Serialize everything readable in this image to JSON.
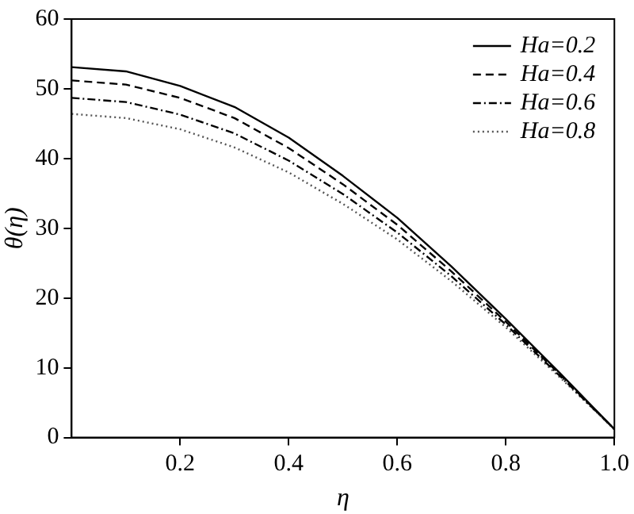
{
  "chart_data": {
    "type": "line",
    "xlabel": "η",
    "ylabel": "θ(η)",
    "x": [
      0,
      0.1,
      0.2,
      0.3,
      0.4,
      0.5,
      0.6,
      0.7,
      0.8,
      0.9,
      1.0
    ],
    "series": [
      {
        "name": "Ha=0.2",
        "color": "#000000",
        "line_style": "solid",
        "values": [
          53.1,
          52.5,
          50.4,
          47.4,
          43.0,
          37.5,
          31.5,
          24.5,
          17.0,
          9.2,
          1.2
        ]
      },
      {
        "name": "Ha=0.4",
        "color": "#000000",
        "line_style": "dashed",
        "values": [
          51.2,
          50.6,
          48.7,
          45.8,
          41.5,
          36.3,
          30.5,
          23.8,
          16.6,
          9.0,
          1.2
        ]
      },
      {
        "name": "Ha=0.6",
        "color": "#000000",
        "line_style": "dashdot",
        "values": [
          48.7,
          48.1,
          46.3,
          43.6,
          39.7,
          34.9,
          29.4,
          23.1,
          16.2,
          8.8,
          1.2
        ]
      },
      {
        "name": "Ha=0.8",
        "color": "#555555",
        "line_style": "dotted",
        "values": [
          46.4,
          45.8,
          44.2,
          41.6,
          38.0,
          33.5,
          28.4,
          22.4,
          15.8,
          8.6,
          1.2
        ]
      }
    ],
    "xlim": [
      0,
      1
    ],
    "xticks": [
      0.2,
      0.4,
      0.6,
      0.8,
      {
        "value": 1,
        "label": "1.0"
      }
    ],
    "ylim": [
      0,
      60
    ],
    "yticks": [
      0,
      10,
      20,
      30,
      40,
      50,
      60
    ],
    "grid": false,
    "legend": "top right",
    "marker": "none"
  }
}
